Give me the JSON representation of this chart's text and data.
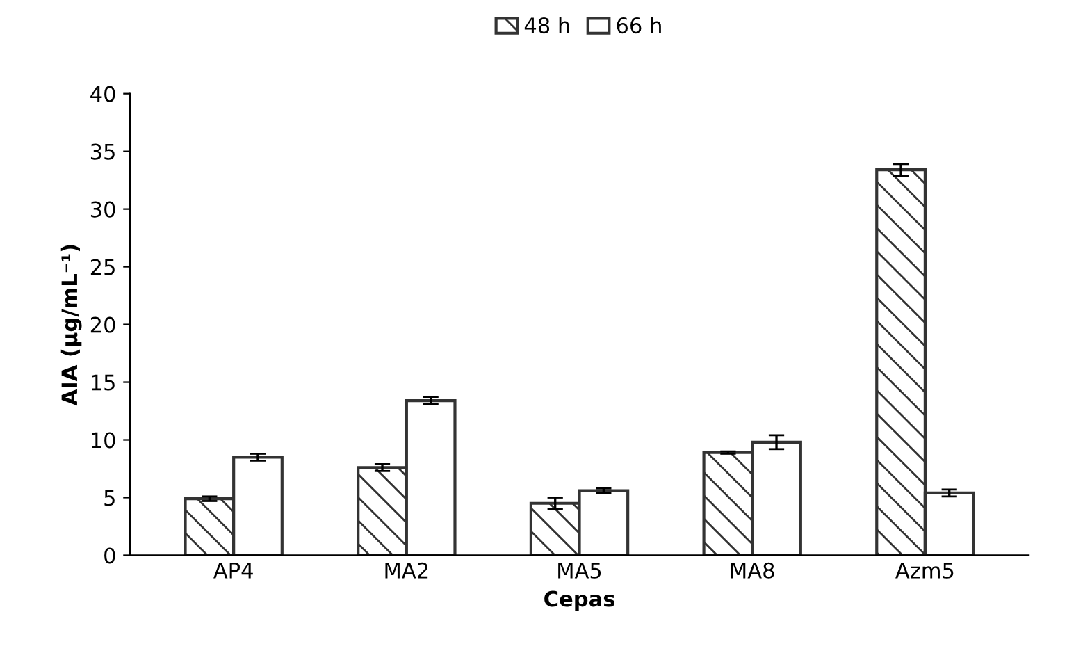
{
  "chart_data": {
    "type": "bar",
    "xlabel": "Cepas",
    "ylabel": "AIA (μg/mL⁻¹)",
    "categories": [
      "AP4",
      "MA2",
      "MA5",
      "MA8",
      "Azm5"
    ],
    "series": [
      {
        "name": "48 h",
        "color": "#333333",
        "values": [
          4.9,
          7.6,
          4.5,
          8.9,
          33.4
        ],
        "errors": [
          0.2,
          0.3,
          0.5,
          0.1,
          0.5
        ]
      },
      {
        "name": "66 h",
        "color": "#ffffff",
        "values": [
          8.5,
          13.4,
          5.6,
          9.8,
          5.4
        ],
        "errors": [
          0.3,
          0.3,
          0.2,
          0.6,
          0.3
        ]
      }
    ],
    "ylim": [
      0,
      40
    ],
    "yticks": [
      0,
      5,
      10,
      15,
      20,
      25,
      30,
      35,
      40
    ],
    "grid": false,
    "legend": "top"
  }
}
